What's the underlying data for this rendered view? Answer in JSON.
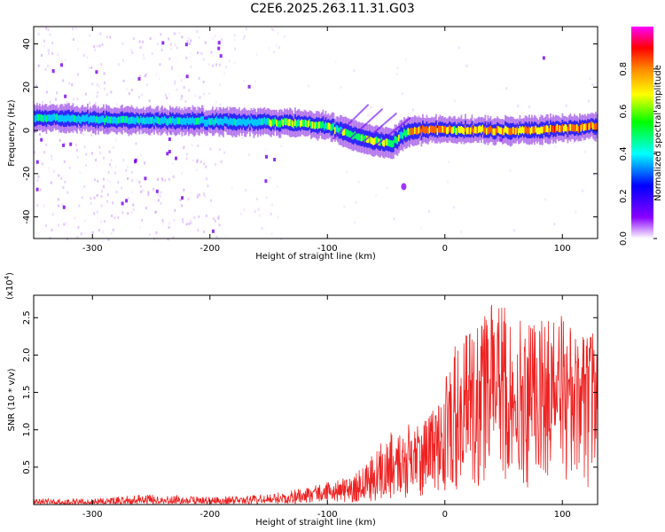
{
  "figure": {
    "title": "C2E6.2025.263.11.31.G03"
  },
  "chart_data": [
    {
      "type": "heatmap",
      "panel": "spectrogram",
      "xlabel": "Height of straight line (km)",
      "ylabel": "Frequency (Hz)",
      "xlim": [
        -350,
        130
      ],
      "ylim": [
        -50,
        48
      ],
      "x_ticks": [
        -300,
        -200,
        -100,
        0,
        100
      ],
      "y_ticks": [
        -40,
        -20,
        0,
        20,
        40
      ],
      "band_center_hz": [
        [
          -350,
          6
        ],
        [
          -300,
          5
        ],
        [
          -250,
          4.5
        ],
        [
          -200,
          4
        ],
        [
          -150,
          4
        ],
        [
          -120,
          3
        ],
        [
          -100,
          2
        ],
        [
          -80,
          -2
        ],
        [
          -60,
          -5
        ],
        [
          -45,
          -6
        ],
        [
          -35,
          -1
        ],
        [
          -25,
          0
        ],
        [
          0,
          0.5
        ],
        [
          25,
          0
        ],
        [
          50,
          0
        ],
        [
          75,
          0
        ],
        [
          100,
          1
        ],
        [
          130,
          2
        ]
      ],
      "colorbar": {
        "label": "Normalized spectral amplitude",
        "range": [
          0.0,
          1.0
        ],
        "ticks": [
          0.0,
          0.2,
          0.4,
          0.6,
          0.8
        ],
        "tick_labels": [
          "0.0",
          "0.2",
          "0.4",
          "0.6",
          "0.8"
        ],
        "colormap": [
          "#ffffff",
          "#8800ff",
          "#0000ff",
          "#00ffff",
          "#00ff00",
          "#ffff00",
          "#ff8800",
          "#ff0000",
          "#ff00ff"
        ]
      }
    },
    {
      "type": "line",
      "panel": "snr",
      "xlabel": "Height of straight line (km)",
      "ylabel": "SNR (10 * v/v)",
      "y_scale_label": "(x10",
      "y_scale_exponent": "4",
      "xlim": [
        -350,
        130
      ],
      "ylim": [
        0.0,
        2.8
      ],
      "x_ticks": [
        -300,
        -200,
        -100,
        0,
        100
      ],
      "y_ticks": [
        0.5,
        1.0,
        1.5,
        2.0,
        2.5
      ],
      "y_tick_labels": [
        "0.5",
        "1.0",
        "1.5",
        "2.0",
        "2.5"
      ],
      "color": "#ee2222",
      "envelope": {
        "x": [
          -350,
          -300,
          -250,
          -200,
          -150,
          -120,
          -100,
          -80,
          -60,
          -50,
          -40,
          -30,
          -20,
          -10,
          0,
          10,
          20,
          30,
          40,
          50,
          60,
          70,
          80,
          90,
          100,
          110,
          120,
          130
        ],
        "mean": [
          0.03,
          0.03,
          0.05,
          0.04,
          0.06,
          0.1,
          0.15,
          0.2,
          0.3,
          0.45,
          0.55,
          0.6,
          0.7,
          0.85,
          1.05,
          1.2,
          1.35,
          1.5,
          1.6,
          1.65,
          1.55,
          1.45,
          1.55,
          1.6,
          1.55,
          1.5,
          1.5,
          1.45
        ],
        "max": [
          0.08,
          0.08,
          0.14,
          0.1,
          0.14,
          0.22,
          0.3,
          0.38,
          0.7,
          0.95,
          1.05,
          1.1,
          1.1,
          1.3,
          1.7,
          2.2,
          2.3,
          2.4,
          2.7,
          2.72,
          2.5,
          2.4,
          2.45,
          2.5,
          2.55,
          2.3,
          2.35,
          2.3
        ]
      }
    }
  ]
}
